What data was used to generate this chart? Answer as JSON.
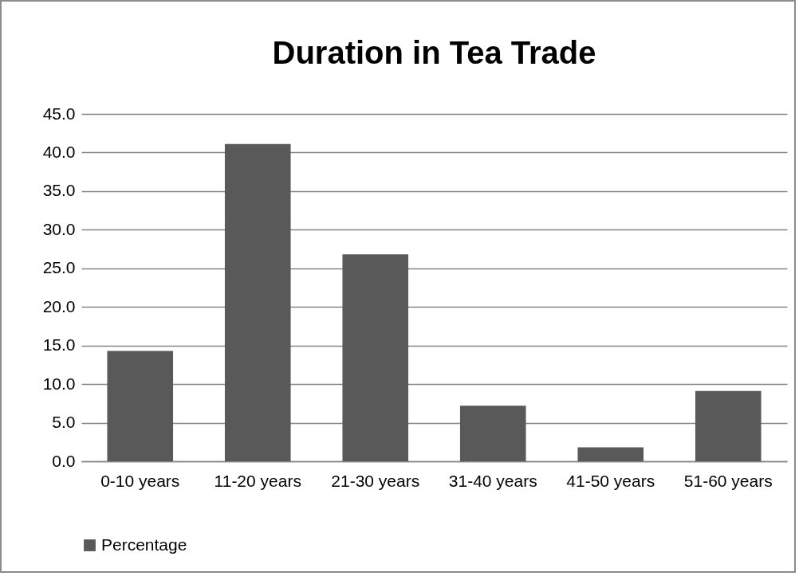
{
  "chart_data": {
    "type": "bar",
    "title": "Duration  in Tea Trade",
    "categories": [
      "0-10 years",
      "11-20 years",
      "21-30 years",
      "31-40 years",
      "41-50 years",
      "51-60 years"
    ],
    "series": [
      {
        "name": "Percentage",
        "color": "#595959",
        "values": [
          14.3,
          41.1,
          26.8,
          7.2,
          1.8,
          9.1
        ]
      }
    ],
    "ylim": [
      0,
      45
    ],
    "yticks": [
      {
        "value": 0,
        "label": "0.0"
      },
      {
        "value": 5,
        "label": "5.0"
      },
      {
        "value": 10,
        "label": "10.0"
      },
      {
        "value": 15,
        "label": "15.0"
      },
      {
        "value": 20,
        "label": "20.0"
      },
      {
        "value": 25,
        "label": "25.0"
      },
      {
        "value": 30,
        "label": "30.0"
      },
      {
        "value": 35,
        "label": "35.0"
      },
      {
        "value": 40,
        "label": "40.0"
      },
      {
        "value": 45,
        "label": "45.0"
      }
    ],
    "grid": "y",
    "legend": "bottom"
  }
}
